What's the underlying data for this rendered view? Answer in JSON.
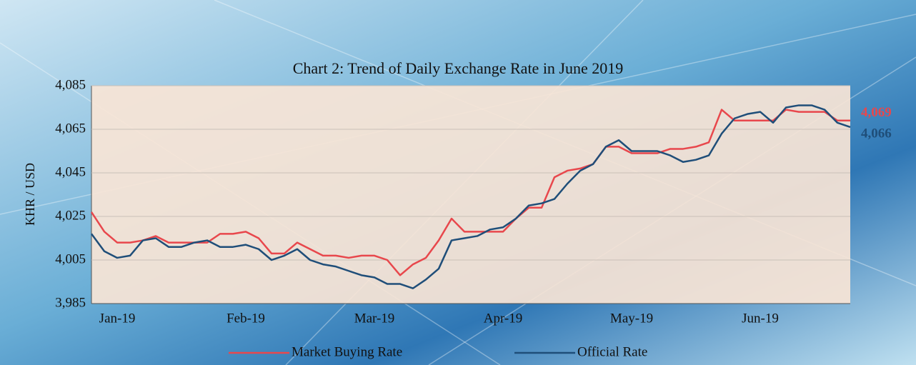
{
  "chart_data": {
    "type": "line",
    "title": "Chart 2: Trend of Daily Exchange Rate in June 2019",
    "y_label": "KHR / USD",
    "categories": [
      null,
      null,
      "Jan-19",
      null,
      null,
      null,
      null,
      null,
      null,
      null,
      null,
      null,
      "Feb-19",
      null,
      null,
      null,
      null,
      null,
      null,
      null,
      null,
      null,
      "Mar-19",
      null,
      null,
      null,
      null,
      null,
      null,
      null,
      null,
      null,
      "Apr-19",
      null,
      null,
      null,
      null,
      null,
      null,
      null,
      null,
      null,
      "May-19",
      null,
      null,
      null,
      null,
      null,
      null,
      null,
      null,
      null,
      "Jun-19",
      null,
      null,
      null,
      null,
      null,
      null,
      null
    ],
    "series": [
      {
        "name": "Market Buying Rate",
        "color": "#e8474c",
        "values": [
          4027,
          4018,
          4013,
          4013,
          4014,
          4016,
          4013,
          4013,
          4013,
          4013,
          4017,
          4017,
          4018,
          4015,
          4008,
          4008,
          4013,
          4010,
          4007,
          4007,
          4006,
          4007,
          4007,
          4005,
          3998,
          4003,
          4006,
          4014,
          4024,
          4018,
          4018,
          4018,
          4018,
          4024,
          4029,
          4029,
          4043,
          4046,
          4047,
          4049,
          4057,
          4057,
          4054,
          4054,
          4054,
          4056,
          4056,
          4057,
          4059,
          4074,
          4069,
          4069,
          4069,
          4069,
          4074,
          4073,
          4073,
          4073,
          4069,
          4069
        ],
        "value_labels": [
          null,
          null,
          null,
          null,
          null,
          null,
          null,
          null,
          null,
          null,
          null,
          null,
          null,
          null,
          null,
          null,
          null,
          null,
          null,
          null,
          null,
          null,
          null,
          null,
          null,
          null,
          null,
          null,
          null,
          null,
          null,
          null,
          null,
          null,
          null,
          null,
          null,
          null,
          null,
          null,
          null,
          null,
          null,
          null,
          null,
          null,
          null,
          null,
          null,
          null,
          null,
          null,
          null,
          null,
          null,
          null,
          null,
          null,
          null,
          "4,069"
        ]
      },
      {
        "name": "Official Rate",
        "color": "#1f4e79",
        "values": [
          4017,
          4009,
          4006,
          4007,
          4014,
          4015,
          4011,
          4011,
          4013,
          4014,
          4011,
          4011,
          4012,
          4010,
          4005,
          4007,
          4010,
          4005,
          4003,
          4002,
          4000,
          3998,
          3997,
          3994,
          3994,
          3992,
          3996,
          4001,
          4014,
          4015,
          4016,
          4019,
          4020,
          4024,
          4030,
          4031,
          4033,
          4040,
          4046,
          4049,
          4057,
          4060,
          4055,
          4055,
          4055,
          4053,
          4050,
          4051,
          4053,
          4063,
          4070,
          4072,
          4073,
          4068,
          4075,
          4076,
          4076,
          4074,
          4068,
          4066
        ],
        "value_labels": [
          null,
          null,
          null,
          null,
          null,
          null,
          null,
          null,
          null,
          null,
          null,
          null,
          null,
          null,
          null,
          null,
          null,
          null,
          null,
          null,
          null,
          null,
          null,
          null,
          null,
          null,
          null,
          null,
          null,
          null,
          null,
          null,
          null,
          null,
          null,
          null,
          null,
          null,
          null,
          null,
          null,
          null,
          null,
          null,
          null,
          null,
          null,
          null,
          null,
          null,
          null,
          null,
          null,
          null,
          null,
          null,
          null,
          null,
          null,
          "4,066"
        ]
      }
    ],
    "ylim": [
      3985,
      4085
    ],
    "yticks": [
      {
        "value": 3985,
        "label": "3,985"
      },
      {
        "value": 4005,
        "label": "4,005"
      },
      {
        "value": 4025,
        "label": "4,025"
      },
      {
        "value": 4045,
        "label": "4,045"
      },
      {
        "value": 4065,
        "label": "4,065"
      },
      {
        "value": 4085,
        "label": "4,085"
      }
    ],
    "grid": true
  }
}
